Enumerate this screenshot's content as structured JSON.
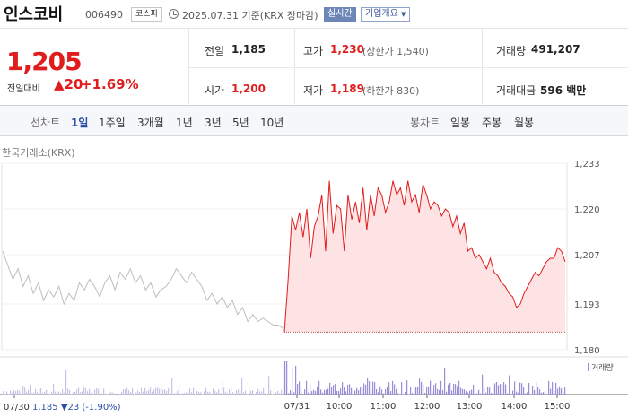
{
  "header": {
    "name": "인스코비",
    "code": "006490",
    "market": "코스피",
    "date": "2025.07.31 기준(KRX 장마감)",
    "realtime": "실시간",
    "company_info": "기업개요"
  },
  "price": {
    "current": "1,205",
    "change_label": "전일대비",
    "change_value": "▲20",
    "change_pct": "+1.69%"
  },
  "summary": {
    "prev_close_label": "전일",
    "prev_close": "1,185",
    "high_label": "고가",
    "high": "1,230",
    "upper_limit": "(상한가 1,540)",
    "volume_label": "거래량",
    "volume": "491,207",
    "open_label": "시가",
    "open": "1,200",
    "low_label": "저가",
    "low": "1,189",
    "lower_limit": "(하한가 830)",
    "amount_label": "거래대금",
    "amount": "596 백만"
  },
  "tabs": {
    "line_label": "선차트",
    "periods": [
      "1일",
      "1주일",
      "3개월",
      "1년",
      "3년",
      "5년",
      "10년"
    ],
    "candle_label": "봉차트",
    "candles": [
      "일봉",
      "주봉",
      "월봉"
    ]
  },
  "chart_data": {
    "type": "line",
    "source": "한국거래소(KRX)",
    "y_ticks": [
      "1,233",
      "1,220",
      "1,207",
      "1,193",
      "1,180"
    ],
    "ylim": [
      1180,
      1233
    ],
    "x_ticks": [
      "07/30",
      "07/31",
      "10:00",
      "11:00",
      "12:00",
      "13:00",
      "14:00",
      "15:00"
    ],
    "prev_close": 1185,
    "prev_day_series": {
      "values": [
        1208,
        1204,
        1200,
        1203,
        1198,
        1201,
        1196,
        1199,
        1194,
        1197,
        1195,
        1198,
        1193,
        1196,
        1194,
        1199,
        1197,
        1200,
        1198,
        1195,
        1199,
        1201,
        1197,
        1202,
        1200,
        1203,
        1199,
        1201,
        1197,
        1199,
        1195,
        1197,
        1198,
        1200,
        1203,
        1201,
        1199,
        1202,
        1200,
        1198,
        1194,
        1196,
        1193,
        1195,
        1192,
        1194,
        1190,
        1192,
        1188,
        1190,
        1188,
        1189,
        1188,
        1187,
        1187,
        1186
      ]
    },
    "today_series": {
      "values": [
        1185,
        1200,
        1218,
        1214,
        1219,
        1212,
        1220,
        1206,
        1215,
        1218,
        1224,
        1208,
        1228,
        1213,
        1221,
        1220,
        1208,
        1224,
        1217,
        1222,
        1216,
        1226,
        1214,
        1224,
        1218,
        1226,
        1224,
        1219,
        1222,
        1228,
        1224,
        1226,
        1221,
        1228,
        1222,
        1224,
        1219,
        1227,
        1224,
        1220,
        1222,
        1221,
        1218,
        1220,
        1219,
        1215,
        1218,
        1213,
        1216,
        1208,
        1209,
        1206,
        1207,
        1205,
        1203,
        1206,
        1202,
        1201,
        1199,
        1198,
        1196,
        1195,
        1192,
        1193,
        1196,
        1198,
        1200,
        1202,
        1201,
        1203,
        1205,
        1206,
        1206,
        1209,
        1208,
        1205
      ]
    },
    "volume_label": "거래량",
    "footer": {
      "prev_date": "07/30",
      "prev_price": "1,185",
      "prev_change": "▼23 (-1.90%)"
    }
  },
  "colors": {
    "up": "#e01c1c",
    "down": "#2b4fa8",
    "prev_line": "#bdbdbd",
    "area": "#fde3e3",
    "volume": "#9a8fd6"
  }
}
